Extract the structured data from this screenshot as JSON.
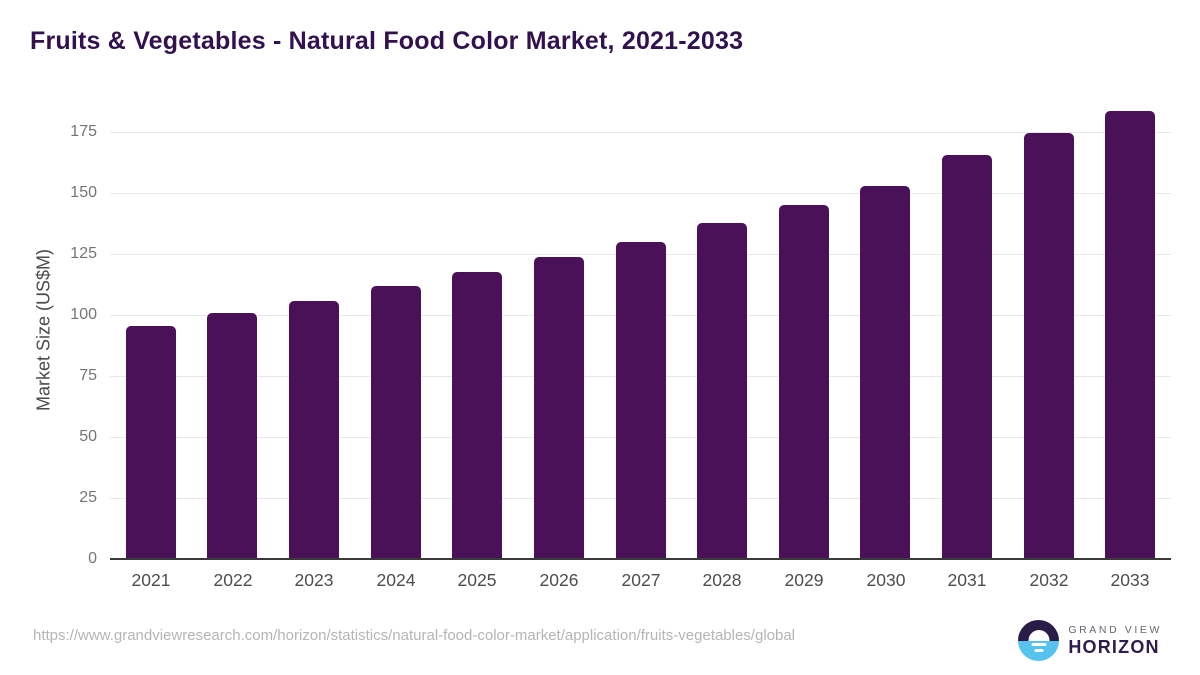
{
  "header": {
    "title": "Fruits & Vegetables - Natural Food Color Market, 2021-2033"
  },
  "chart_data": {
    "type": "bar",
    "title": "Fruits & Vegetables - Natural Food Color Market, 2021-2033",
    "categories": [
      "2021",
      "2022",
      "2023",
      "2024",
      "2025",
      "2026",
      "2027",
      "2028",
      "2029",
      "2030",
      "2031",
      "2032",
      "2033"
    ],
    "values": [
      95.6,
      100.7,
      105.9,
      111.8,
      117.6,
      123.6,
      130.1,
      137.7,
      144.9,
      152.9,
      165.6,
      174.5,
      183.6
    ],
    "xlabel": "",
    "ylabel": "Market Size (US$M)",
    "ylim": [
      0,
      186
    ],
    "yticks": [
      0,
      25,
      50,
      75,
      100,
      125,
      150,
      175
    ],
    "grid": true,
    "legend": "none",
    "bar_color": "#4a1058"
  },
  "colors": {
    "title": "#31114e",
    "bar": "#4a1058",
    "gridline": "#e8e8e8",
    "axis_line": "#3a3a3a",
    "ytick_text": "#757575",
    "xtick_text": "#4d4d4d",
    "url_text": "#b5b5b5",
    "logo_purple": "#2b1b47",
    "logo_blue": "#56c3ee"
  },
  "footer": {
    "source_url": "https://www.grandviewresearch.com/horizon/statistics/natural-food-color-market/application/fruits-vegetables/global",
    "logo": {
      "icon": "horizon-sun-icon",
      "line1": "GRAND VIEW",
      "line2": "HORIZON"
    }
  }
}
